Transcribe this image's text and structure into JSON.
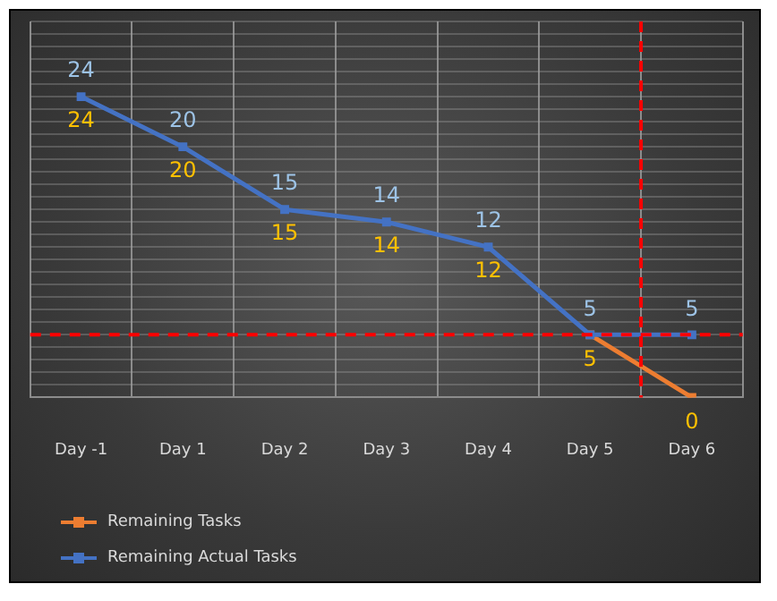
{
  "chart_data": {
    "type": "line",
    "categories": [
      "Day -1",
      "Day 1",
      "Day 2",
      "Day 3",
      "Day 4",
      "Day 5",
      "Day 6"
    ],
    "series": [
      {
        "name": "Remaining Tasks",
        "color": "#ed7d31",
        "values": [
          null,
          null,
          null,
          null,
          null,
          5,
          0
        ]
      },
      {
        "name": "Remaining Actual Tasks",
        "color": "#4472c4",
        "values": [
          24,
          20,
          15,
          14,
          12,
          5,
          5
        ]
      }
    ],
    "ylim": [
      0,
      30
    ],
    "tick_labels": "x",
    "grid": true,
    "marker": "square",
    "line_style": "solid",
    "data_labels": true,
    "legend": "bottom left",
    "annotations": [
      {
        "text": "24",
        "x": "Day -1",
        "y": 24
      },
      {
        "text": "20",
        "x": "Day 1",
        "y": 20
      },
      {
        "text": "15",
        "x": "Day 2",
        "y": 15
      },
      {
        "text": "14",
        "x": "Day 3",
        "y": 14
      },
      {
        "text": "12",
        "x": "Day 4",
        "y": 12
      }
    ],
    "ref_lines": [
      {
        "axis": "y",
        "value": 5,
        "color": "#ff0000",
        "line_style": "dashed"
      },
      {
        "axis": "x",
        "value": "Day 6",
        "color": "#ff0000",
        "line_style": "dashed"
      }
    ]
  }
}
